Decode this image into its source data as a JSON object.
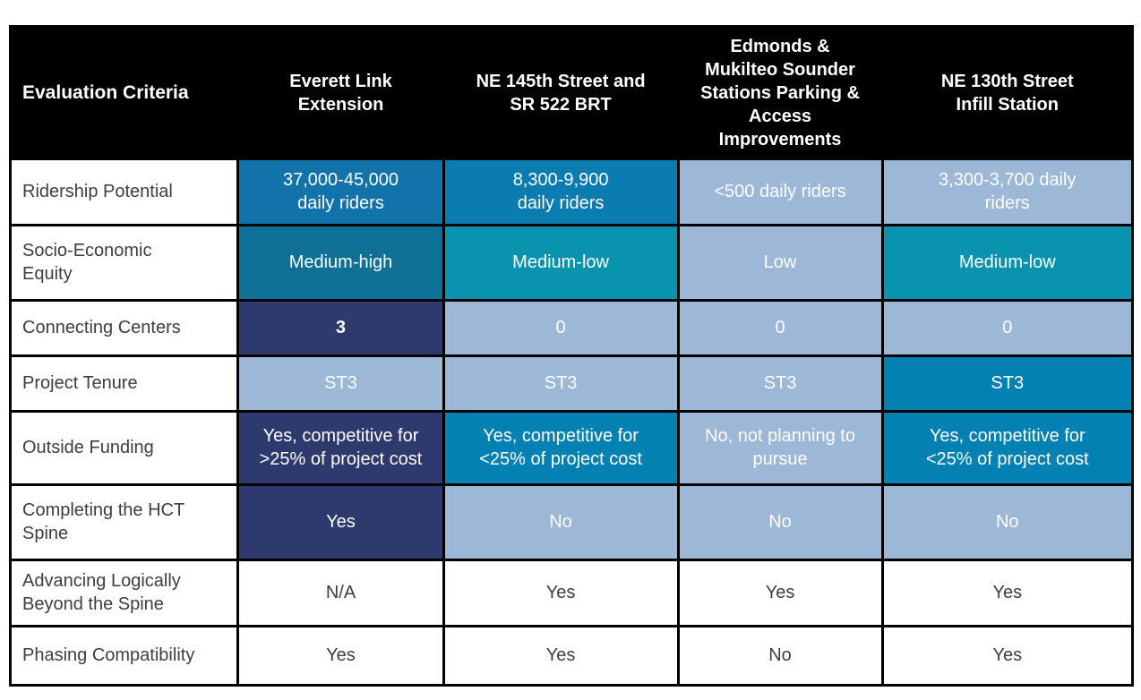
{
  "palette": {
    "navy": "#2E3A6E",
    "blue": "#1173A9",
    "blue2": "#0A7CB0",
    "tealDark": "#0E7094",
    "teal": "#0A93AF",
    "cyanBlue": "#0381B2",
    "lightBlue": "#9DB7D7",
    "plain": "#FFFFFF",
    "header_bg": "#000000",
    "header_text": "#FFFFFF",
    "body_text": "#3E3E3E",
    "border": "#000000"
  },
  "table": {
    "columns": [
      "Evaluation Criteria",
      "Everett Link\nExtension",
      "NE 145th Street and\nSR 522 BRT",
      "Edmonds &\nMukilteo Sounder\nStations Parking &\nAccess\nImprovements",
      "NE 130th Street\nInfill Station"
    ],
    "rows": [
      {
        "label": "Ridership Potential",
        "cells": [
          {
            "text": "37,000-45,000\ndaily riders",
            "tone": "blue"
          },
          {
            "text": "8,300-9,900\ndaily riders",
            "tone": "blue2"
          },
          {
            "text": "<500 daily riders",
            "tone": "lightBlue"
          },
          {
            "text": "3,300-3,700 daily\nriders",
            "tone": "lightBlue"
          }
        ]
      },
      {
        "label": "Socio-Economic\nEquity",
        "cells": [
          {
            "text": "Medium-high",
            "tone": "tealDark"
          },
          {
            "text": "Medium-low",
            "tone": "teal"
          },
          {
            "text": "Low",
            "tone": "lightBlue"
          },
          {
            "text": "Medium-low",
            "tone": "teal"
          }
        ]
      },
      {
        "label": "Connecting Centers",
        "cells": [
          {
            "text": "3",
            "tone": "navy",
            "bold": "true"
          },
          {
            "text": "0",
            "tone": "lightBlue"
          },
          {
            "text": "0",
            "tone": "lightBlue"
          },
          {
            "text": "0",
            "tone": "lightBlue"
          }
        ]
      },
      {
        "label": "Project Tenure",
        "cells": [
          {
            "text": "ST3",
            "tone": "lightBlue"
          },
          {
            "text": "ST3",
            "tone": "lightBlue"
          },
          {
            "text": "ST3",
            "tone": "lightBlue"
          },
          {
            "text": "ST3",
            "tone": "cyanBlue"
          }
        ]
      },
      {
        "label": "Outside Funding",
        "cells": [
          {
            "text": "Yes, competitive for\n>25% of project cost",
            "tone": "navy"
          },
          {
            "text": "Yes, competitive for\n<25% of project cost",
            "tone": "cyanBlue"
          },
          {
            "text": "No, not planning to\npursue",
            "tone": "lightBlue"
          },
          {
            "text": "Yes, competitive for\n<25% of project cost",
            "tone": "cyanBlue"
          }
        ]
      },
      {
        "label": "Completing the HCT\nSpine",
        "cells": [
          {
            "text": "Yes",
            "tone": "navy"
          },
          {
            "text": "No",
            "tone": "lightBlue"
          },
          {
            "text": "No",
            "tone": "lightBlue"
          },
          {
            "text": "No",
            "tone": "lightBlue"
          }
        ]
      },
      {
        "label": "Advancing Logically\nBeyond the Spine",
        "cells": [
          {
            "text": "N/A",
            "tone": "plain"
          },
          {
            "text": "Yes",
            "tone": "plain"
          },
          {
            "text": "Yes",
            "tone": "plain"
          },
          {
            "text": "Yes",
            "tone": "plain"
          }
        ]
      },
      {
        "label": "Phasing Compatibility",
        "cells": [
          {
            "text": "Yes",
            "tone": "plain"
          },
          {
            "text": "Yes",
            "tone": "plain"
          },
          {
            "text": "No",
            "tone": "plain"
          },
          {
            "text": "Yes",
            "tone": "plain"
          }
        ]
      }
    ]
  }
}
